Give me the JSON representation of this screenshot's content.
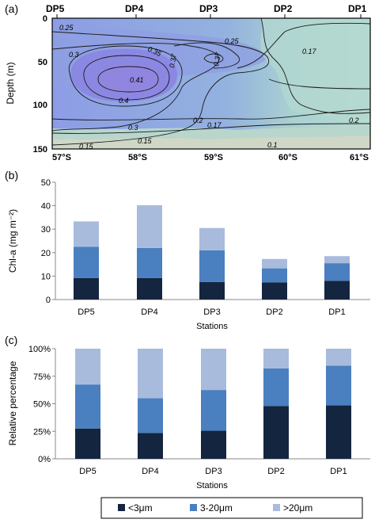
{
  "colors": {
    "dark": "#14253f",
    "mid": "#4a7fc0",
    "light": "#a9bbdc",
    "axis": "#888888"
  },
  "chart_data": [
    {
      "panel": "(a)",
      "type": "heatmap",
      "top_labels": [
        "DP5",
        "DP4",
        "DP3",
        "DP2",
        "DP1"
      ],
      "x_ticks": [
        "57°S",
        "58°S",
        "59°S",
        "60°S",
        "61°S"
      ],
      "ylabel": "Depth (m)",
      "y_ticks": [
        "0",
        "50",
        "100",
        "150"
      ],
      "ylim": [
        150,
        0
      ],
      "contour_labels": [
        "0.25",
        "0.3",
        "0.35",
        "0.37",
        "0.37",
        "0.41",
        "0.4",
        "0.3",
        "0.25",
        "0.17",
        "0.2",
        "0.17",
        "0.2",
        "0.15",
        "0.15",
        "0.1"
      ]
    },
    {
      "panel": "(b)",
      "type": "bar",
      "stacked": true,
      "categories": [
        "DP5",
        "DP4",
        "DP3",
        "DP2",
        "DP1"
      ],
      "series": [
        {
          "values": [
            9.2,
            9.2,
            7.5,
            7.3,
            8.0
          ]
        },
        {
          "values": [
            13.3,
            12.8,
            13.5,
            6.0,
            7.5
          ]
        },
        {
          "values": [
            10.8,
            18.2,
            9.5,
            4.0,
            3.0
          ]
        }
      ],
      "ylim": [
        0,
        50
      ],
      "y_ticks": [
        "0",
        "10",
        "20",
        "30",
        "40",
        "50"
      ],
      "ylabel": "Chl-a (mg m⁻²)",
      "xlabel": "Stations"
    },
    {
      "panel": "(c)",
      "type": "bar",
      "stacked": true,
      "categories": [
        "DP5",
        "DP4",
        "DP3",
        "DP2",
        "DP1"
      ],
      "series": [
        {
          "name": "<3μm",
          "values": [
            27.5,
            23.5,
            25.5,
            48.0,
            48.5
          ]
        },
        {
          "name": "3-20μm",
          "values": [
            40.0,
            31.5,
            37.0,
            34.0,
            36.0
          ]
        },
        {
          "name": ">20μm",
          "values": [
            32.5,
            45.0,
            37.5,
            18.0,
            15.5
          ]
        }
      ],
      "ylim": [
        0,
        100
      ],
      "y_ticks": [
        "0%",
        "25%",
        "50%",
        "75%",
        "100%"
      ],
      "ylabel": "Relative percentage",
      "xlabel": "Stations",
      "legend": "bottom"
    }
  ]
}
